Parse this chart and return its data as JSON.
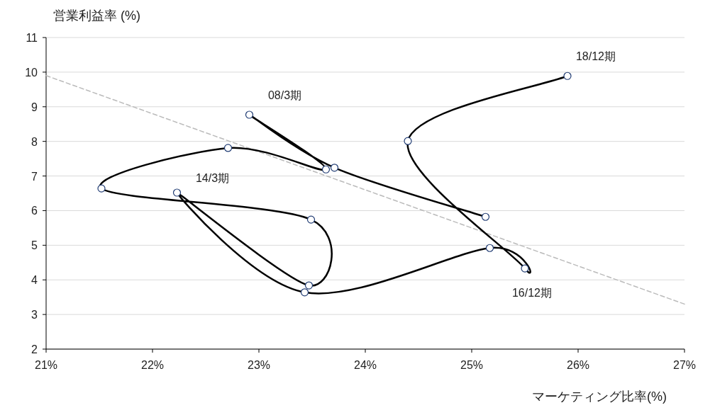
{
  "chart_data": {
    "type": "line",
    "xlabel": "マーケティング比率(%)",
    "ylabel": "営業利益率 (%)",
    "xlim": [
      21,
      27
    ],
    "ylim": [
      2,
      11
    ],
    "xticks": [
      {
        "value": 21,
        "label": "21%"
      },
      {
        "value": 22,
        "label": "22%"
      },
      {
        "value": 23,
        "label": "23%"
      },
      {
        "value": 24,
        "label": "24%"
      },
      {
        "value": 25,
        "label": "25%"
      },
      {
        "value": 26,
        "label": "26%"
      },
      {
        "value": 27,
        "label": "27%"
      }
    ],
    "yticks": [
      2,
      3,
      4,
      5,
      6,
      7,
      8,
      9,
      10,
      11
    ],
    "grid": "y",
    "series": [
      {
        "color": "#bbbbbb",
        "line_style": "dashed",
        "marker": "none",
        "x": [
          21,
          27
        ],
        "values": [
          9.9,
          3.3
        ]
      },
      {
        "color": "#000000",
        "line_style": "solid",
        "marker": "circle",
        "x": [
          25.13,
          23.71,
          22.91,
          23.63,
          22.71,
          21.52,
          23.49,
          23.47,
          22.23,
          23.43,
          25.17,
          25.5,
          24.4,
          25.9
        ],
        "values": [
          5.82,
          7.24,
          8.77,
          7.19,
          7.81,
          6.64,
          5.74,
          3.84,
          6.52,
          3.64,
          4.92,
          4.33,
          8.01,
          9.89
        ]
      }
    ],
    "annotations": [
      {
        "text": "08/3期",
        "x": 22.91,
        "y": 8.77
      },
      {
        "text": "14/3期",
        "x": 22.23,
        "y": 6.52
      },
      {
        "text": "16/12期",
        "x": 25.5,
        "y": 4.33
      },
      {
        "text": "18/12期",
        "x": 25.9,
        "y": 9.89
      }
    ]
  }
}
